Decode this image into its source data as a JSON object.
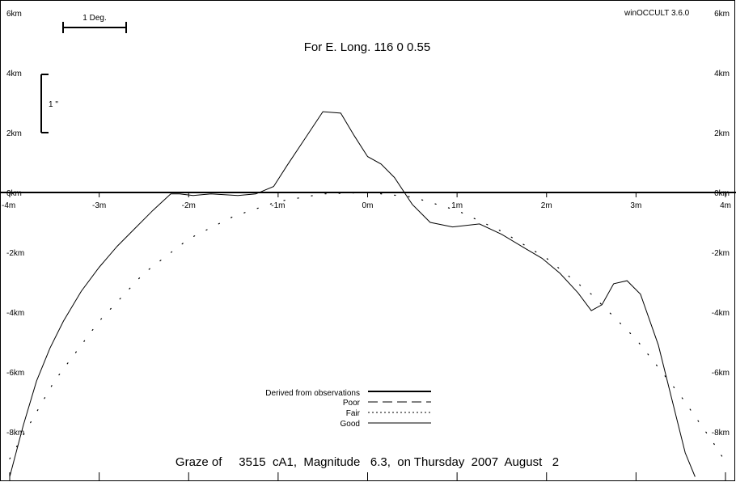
{
  "app_label": "winOCCULT 3.6.0",
  "header": {
    "longitude": "For E. Long.  116  0  0.55"
  },
  "footer": {
    "graze": "Graze of     3515  cA1,  Magnitude   6.3,  on Thursday  2007  August   2"
  },
  "scale_bar": {
    "label": "1 Deg."
  },
  "vertical_scale": {
    "label": "1 \""
  },
  "left_y_labels": [
    "6km",
    "4km",
    "2km",
    "0km",
    "-2km",
    "-4km",
    "-6km",
    "-8km"
  ],
  "right_y_labels": [
    "6km",
    "4km",
    "2km",
    "0km",
    "-2km",
    "-4km",
    "-6km",
    "-8km"
  ],
  "x_tick_labels": [
    "-4m",
    "-3m",
    "-2m",
    "-1m",
    "0m",
    "1m",
    "2m",
    "3m",
    "4m"
  ],
  "legend": [
    {
      "label": "Derived from observations",
      "style": "thick"
    },
    {
      "label": "Poor",
      "style": "dashed"
    },
    {
      "label": "Fair",
      "style": "dotted"
    },
    {
      "label": "Good",
      "style": "solid"
    }
  ],
  "chart_data": {
    "type": "line",
    "xlabel": "",
    "ylabel": "",
    "xlim": [
      -4,
      4
    ],
    "ylim": [
      -9.5,
      6.5
    ],
    "x_unit": "minutes",
    "y_unit": "km",
    "series": [
      {
        "style": "solid",
        "points": [
          [
            -4.0,
            -9.5
          ],
          [
            -3.85,
            -7.8
          ],
          [
            -3.7,
            -6.3
          ],
          [
            -3.55,
            -5.2
          ],
          [
            -3.4,
            -4.3
          ],
          [
            -3.2,
            -3.3
          ],
          [
            -3.0,
            -2.5
          ],
          [
            -2.8,
            -1.8
          ],
          [
            -2.6,
            -1.2
          ],
          [
            -2.4,
            -0.6
          ],
          [
            -2.2,
            -0.05
          ],
          [
            -2.1,
            -0.05
          ],
          [
            -1.95,
            -0.1
          ],
          [
            -1.75,
            -0.05
          ],
          [
            -1.45,
            -0.1
          ],
          [
            -1.25,
            -0.05
          ],
          [
            -1.05,
            0.2
          ],
          [
            -0.9,
            0.9
          ],
          [
            -0.7,
            1.8
          ],
          [
            -0.5,
            2.7
          ],
          [
            -0.3,
            2.65
          ],
          [
            -0.15,
            1.9
          ],
          [
            0.0,
            1.2
          ],
          [
            0.15,
            0.95
          ],
          [
            0.3,
            0.5
          ],
          [
            0.5,
            -0.4
          ],
          [
            0.7,
            -1.0
          ],
          [
            0.95,
            -1.15
          ],
          [
            1.25,
            -1.05
          ],
          [
            1.5,
            -1.4
          ],
          [
            1.75,
            -1.85
          ],
          [
            1.95,
            -2.2
          ],
          [
            2.15,
            -2.7
          ],
          [
            2.35,
            -3.35
          ],
          [
            2.5,
            -3.95
          ],
          [
            2.62,
            -3.75
          ],
          [
            2.75,
            -3.05
          ],
          [
            2.9,
            -2.95
          ],
          [
            3.05,
            -3.4
          ],
          [
            3.25,
            -5.1
          ],
          [
            3.4,
            -6.9
          ],
          [
            3.55,
            -8.7
          ],
          [
            3.66,
            -9.5
          ]
        ]
      },
      {
        "style": "dotted",
        "points": [
          [
            -4.0,
            -8.9
          ],
          [
            -3.5,
            -6.3
          ],
          [
            -3.0,
            -4.3
          ],
          [
            -2.5,
            -2.7
          ],
          [
            -2.0,
            -1.55
          ],
          [
            -1.5,
            -0.8
          ],
          [
            -1.0,
            -0.3
          ],
          [
            -0.5,
            -0.05
          ],
          [
            0.0,
            0.0
          ],
          [
            0.5,
            -0.15
          ],
          [
            1.0,
            -0.6
          ],
          [
            1.5,
            -1.3
          ],
          [
            2.0,
            -2.2
          ],
          [
            2.5,
            -3.4
          ],
          [
            3.0,
            -4.9
          ],
          [
            3.5,
            -6.8
          ],
          [
            3.85,
            -8.3
          ],
          [
            4.0,
            -9.0
          ]
        ]
      }
    ]
  }
}
